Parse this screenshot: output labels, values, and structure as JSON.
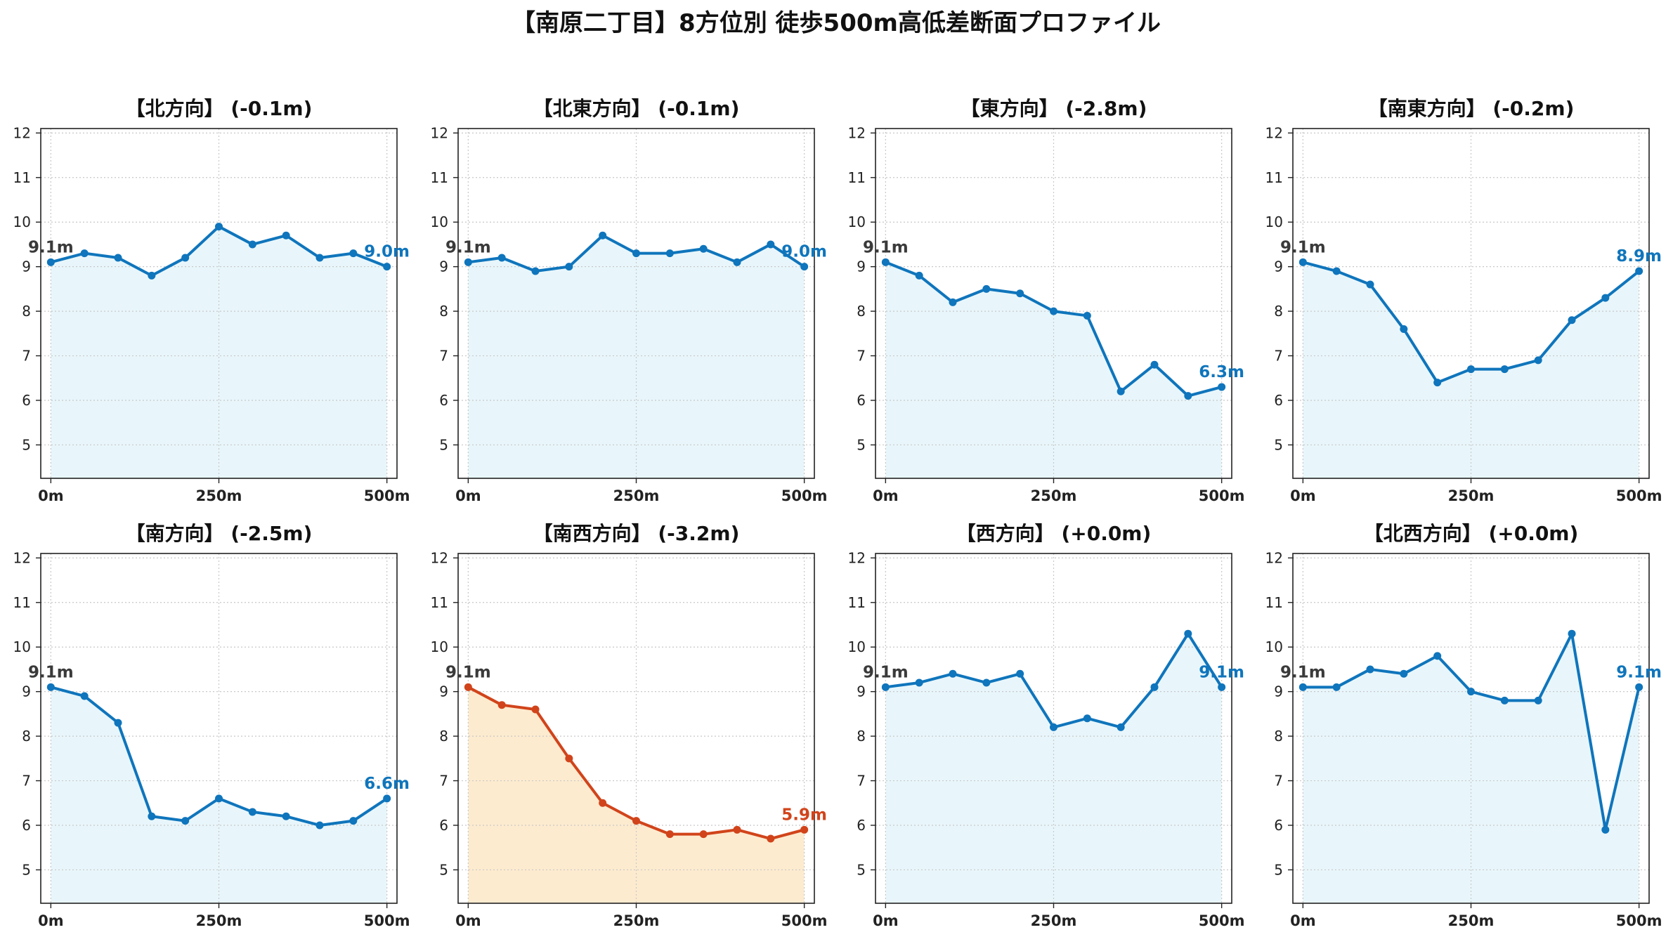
{
  "title": "【南原二丁目】8方位別 徒歩500m高低差断面プロファイル",
  "colors": {
    "normal_line": "#0f75bc",
    "normal_fill": "#e8f6fb",
    "highlight_line": "#d1441b",
    "highlight_fill": "#fdebcf",
    "start_label": "#3a3a3a",
    "grid": "#c8c8c8",
    "axis": "#222222"
  },
  "chart_data": [
    {
      "type": "area",
      "title": "【北方向】 (-0.1m)",
      "x": [
        0,
        50,
        100,
        150,
        200,
        250,
        300,
        350,
        400,
        450,
        500
      ],
      "values": [
        9.1,
        9.3,
        9.2,
        8.8,
        9.2,
        9.9,
        9.5,
        9.7,
        9.2,
        9.3,
        9.0
      ],
      "xticks": [
        "0m",
        "250m",
        "500m"
      ],
      "yticks": [
        "5",
        "6",
        "7",
        "8",
        "9",
        "10",
        "11",
        "12"
      ],
      "ylim": [
        4.25,
        12.1
      ],
      "start_label": "9.1m",
      "end_label": "9.0m",
      "highlight": false,
      "grid": true
    },
    {
      "type": "area",
      "title": "【北東方向】 (-0.1m)",
      "x": [
        0,
        50,
        100,
        150,
        200,
        250,
        300,
        350,
        400,
        450,
        500
      ],
      "values": [
        9.1,
        9.2,
        8.9,
        9.0,
        9.7,
        9.3,
        9.3,
        9.4,
        9.1,
        9.5,
        9.0
      ],
      "xticks": [
        "0m",
        "250m",
        "500m"
      ],
      "yticks": [
        "5",
        "6",
        "7",
        "8",
        "9",
        "10",
        "11",
        "12"
      ],
      "ylim": [
        4.25,
        12.1
      ],
      "start_label": "9.1m",
      "end_label": "9.0m",
      "highlight": false,
      "grid": true
    },
    {
      "type": "area",
      "title": "【東方向】 (-2.8m)",
      "x": [
        0,
        50,
        100,
        150,
        200,
        250,
        300,
        350,
        400,
        450,
        500
      ],
      "values": [
        9.1,
        8.8,
        8.2,
        8.5,
        8.4,
        8.0,
        7.9,
        6.2,
        6.8,
        6.1,
        6.3
      ],
      "xticks": [
        "0m",
        "250m",
        "500m"
      ],
      "yticks": [
        "5",
        "6",
        "7",
        "8",
        "9",
        "10",
        "11",
        "12"
      ],
      "ylim": [
        4.25,
        12.1
      ],
      "start_label": "9.1m",
      "end_label": "6.3m",
      "highlight": false,
      "grid": true
    },
    {
      "type": "area",
      "title": "【南東方向】 (-0.2m)",
      "x": [
        0,
        50,
        100,
        150,
        200,
        250,
        300,
        350,
        400,
        450,
        500
      ],
      "values": [
        9.1,
        8.9,
        8.6,
        7.6,
        6.4,
        6.7,
        6.7,
        6.9,
        7.8,
        8.3,
        8.9
      ],
      "xticks": [
        "0m",
        "250m",
        "500m"
      ],
      "yticks": [
        "5",
        "6",
        "7",
        "8",
        "9",
        "10",
        "11",
        "12"
      ],
      "ylim": [
        4.25,
        12.1
      ],
      "start_label": "9.1m",
      "end_label": "8.9m",
      "highlight": false,
      "grid": true
    },
    {
      "type": "area",
      "title": "【南方向】 (-2.5m)",
      "x": [
        0,
        50,
        100,
        150,
        200,
        250,
        300,
        350,
        400,
        450,
        500
      ],
      "values": [
        9.1,
        8.9,
        8.3,
        6.2,
        6.1,
        6.6,
        6.3,
        6.2,
        6.0,
        6.1,
        6.6
      ],
      "xticks": [
        "0m",
        "250m",
        "500m"
      ],
      "yticks": [
        "5",
        "6",
        "7",
        "8",
        "9",
        "10",
        "11",
        "12"
      ],
      "ylim": [
        4.25,
        12.1
      ],
      "start_label": "9.1m",
      "end_label": "6.6m",
      "highlight": false,
      "grid": true
    },
    {
      "type": "area",
      "title": "【南西方向】 (-3.2m)",
      "x": [
        0,
        50,
        100,
        150,
        200,
        250,
        300,
        350,
        400,
        450,
        500
      ],
      "values": [
        9.1,
        8.7,
        8.6,
        7.5,
        6.5,
        6.1,
        5.8,
        5.8,
        5.9,
        5.7,
        5.9
      ],
      "xticks": [
        "0m",
        "250m",
        "500m"
      ],
      "yticks": [
        "5",
        "6",
        "7",
        "8",
        "9",
        "10",
        "11",
        "12"
      ],
      "ylim": [
        4.25,
        12.1
      ],
      "start_label": "9.1m",
      "end_label": "5.9m",
      "highlight": true,
      "grid": true
    },
    {
      "type": "area",
      "title": "【西方向】 (+0.0m)",
      "x": [
        0,
        50,
        100,
        150,
        200,
        250,
        300,
        350,
        400,
        450,
        500
      ],
      "values": [
        9.1,
        9.2,
        9.4,
        9.2,
        9.4,
        8.2,
        8.4,
        8.2,
        9.1,
        10.3,
        9.1
      ],
      "xticks": [
        "0m",
        "250m",
        "500m"
      ],
      "yticks": [
        "5",
        "6",
        "7",
        "8",
        "9",
        "10",
        "11",
        "12"
      ],
      "ylim": [
        4.25,
        12.1
      ],
      "start_label": "9.1m",
      "end_label": "9.1m",
      "highlight": false,
      "grid": true
    },
    {
      "type": "area",
      "title": "【北西方向】 (+0.0m)",
      "x": [
        0,
        50,
        100,
        150,
        200,
        250,
        300,
        350,
        400,
        450,
        500
      ],
      "values": [
        9.1,
        9.1,
        9.5,
        9.4,
        9.8,
        9.0,
        8.8,
        8.8,
        10.3,
        5.9,
        9.1
      ],
      "xticks": [
        "0m",
        "250m",
        "500m"
      ],
      "yticks": [
        "5",
        "6",
        "7",
        "8",
        "9",
        "10",
        "11",
        "12"
      ],
      "ylim": [
        4.25,
        12.1
      ],
      "start_label": "9.1m",
      "end_label": "9.1m",
      "highlight": false,
      "grid": true
    }
  ]
}
